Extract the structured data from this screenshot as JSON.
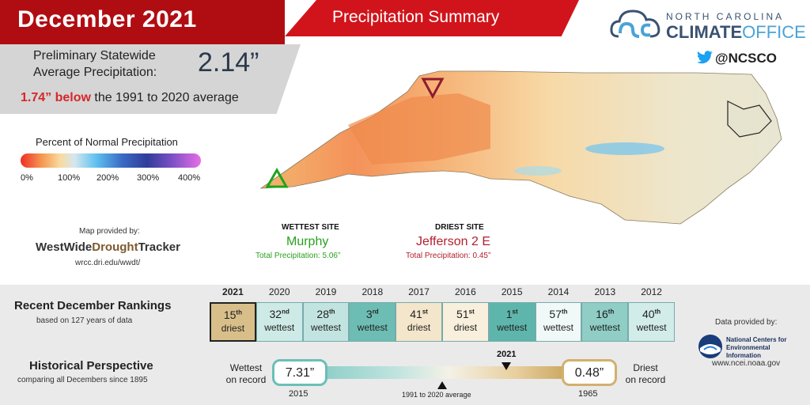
{
  "header": {
    "title": "December 2021",
    "subtitle": "Precipitation Summary"
  },
  "average": {
    "label_line1": "Preliminary Statewide",
    "label_line2": "Average Precipitation:",
    "value": "2.14”",
    "anomaly_value": "1.74” below",
    "anomaly_rest": " the 1991 to 2020 average"
  },
  "logo": {
    "line1": "NORTH CAROLINA",
    "line2a": "CLIMATE",
    "line2b": "OFFICE",
    "twitter": "@NCSCO",
    "colors": {
      "dark": "#3a5272",
      "light": "#4aa3d6"
    }
  },
  "legend": {
    "title": "Percent of Normal Precipitation",
    "ticks": [
      "0%",
      "100%",
      "200%",
      "300%",
      "400%"
    ]
  },
  "provider": {
    "label": "Map provided by:",
    "name_a": "WestWide",
    "name_b": "Drought",
    "name_c": "Tracker",
    "url": "wrcc.dri.edu/wwdt/"
  },
  "sites": {
    "wettest_heading": "WETTEST SITE",
    "wettest_name": "Murphy",
    "wettest_total": "Total Precipitation: 5.06”",
    "driest_heading": "DRIEST SITE",
    "driest_name": "Jefferson 2 E",
    "driest_total": "Total Precipitation: 0.45”",
    "colors": {
      "wet": "#2aa11f",
      "dry": "#b11f2d"
    }
  },
  "rankings": {
    "heading": "Recent December Rankings",
    "subheading": "based on 127 years of data",
    "items": [
      {
        "year": "2021",
        "rank": "15",
        "suffix": "th",
        "type": "driest",
        "color": "#d8bf8a"
      },
      {
        "year": "2020",
        "rank": "32",
        "suffix": "nd",
        "type": "wettest",
        "color": "#cdeae6"
      },
      {
        "year": "2019",
        "rank": "28",
        "suffix": "th",
        "type": "wettest",
        "color": "#c2e4e0"
      },
      {
        "year": "2018",
        "rank": "3",
        "suffix": "rd",
        "type": "wettest",
        "color": "#6dbdb4"
      },
      {
        "year": "2017",
        "rank": "41",
        "suffix": "st",
        "type": "driest",
        "color": "#f3e6cb"
      },
      {
        "year": "2016",
        "rank": "51",
        "suffix": "st",
        "type": "driest",
        "color": "#f8efdd"
      },
      {
        "year": "2015",
        "rank": "1",
        "suffix": "st",
        "type": "wettest",
        "color": "#5eb5ab"
      },
      {
        "year": "2014",
        "rank": "57",
        "suffix": "th",
        "type": "wettest",
        "color": "#f1f9f8"
      },
      {
        "year": "2013",
        "rank": "16",
        "suffix": "th",
        "type": "wettest",
        "color": "#8fcdc5"
      },
      {
        "year": "2012",
        "rank": "40",
        "suffix": "th",
        "type": "wettest",
        "color": "#d2ece9"
      }
    ]
  },
  "history": {
    "heading": "Historical Perspective",
    "subheading": "comparing all Decembers since 1895",
    "wettest_label_1": "Wettest",
    "wettest_label_2": "on record",
    "wettest_value": "7.31”",
    "wettest_year": "2015",
    "driest_label_1": "Driest",
    "driest_label_2": "on record",
    "driest_value": "0.48”",
    "driest_year": "1965",
    "average_label": "1991 to 2020 average",
    "current_label": "2021"
  },
  "data_provider": {
    "label": "Data provided by:",
    "name_line1": "National Centers for",
    "name_line2": "Environmental Information",
    "url": "www.ncei.noaa.gov"
  }
}
